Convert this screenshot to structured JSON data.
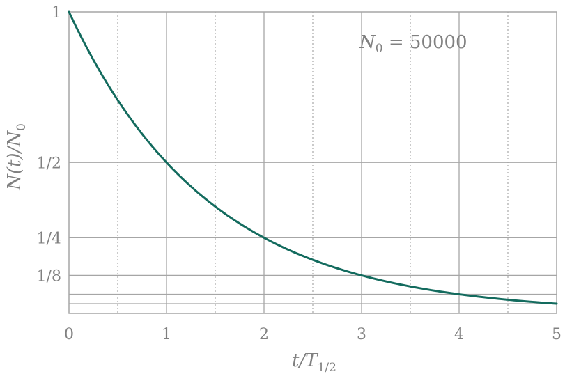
{
  "chart_data": {
    "type": "line",
    "title": "",
    "x_label": {
      "base": "t/T",
      "subscript": "1/2"
    },
    "y_label": {
      "prefix": "N(t)/N",
      "subscript": "0"
    },
    "annotation": {
      "prefix": "N",
      "subscript": "0",
      "suffix": " = 50000"
    },
    "xlim": [
      0,
      5
    ],
    "ylim": [
      0.03125,
      1
    ],
    "x_ticks": [
      {
        "value": 0,
        "label": "0"
      },
      {
        "value": 1,
        "label": "1"
      },
      {
        "value": 2,
        "label": "2"
      },
      {
        "value": 3,
        "label": "3"
      },
      {
        "value": 4,
        "label": "4"
      },
      {
        "value": 5,
        "label": "5"
      }
    ],
    "x_minor_ticks": [
      0.5,
      1.5,
      2.5,
      3.5,
      4.5
    ],
    "y_ticks": [
      {
        "value": 1,
        "label": "1"
      },
      {
        "value": 0.5,
        "label": "1/2"
      },
      {
        "value": 0.25,
        "label": "1/4"
      },
      {
        "value": 0.125,
        "label": "1/8"
      }
    ],
    "y_grid_unlabeled": [
      0.0625,
      0.03125
    ],
    "grid": true,
    "colors": {
      "line": "#136b5e",
      "grid": "#a6a6a6",
      "text": "#808080"
    },
    "series": [
      {
        "x": [
          0,
          0.25,
          0.5,
          0.75,
          1,
          1.25,
          1.5,
          1.75,
          2,
          2.25,
          2.5,
          2.75,
          3,
          3.25,
          3.5,
          3.75,
          4,
          4.25,
          4.5,
          4.75,
          5
        ],
        "y": [
          1,
          0.8409,
          0.7071,
          0.5946,
          0.5,
          0.4204,
          0.3536,
          0.2973,
          0.25,
          0.2102,
          0.1768,
          0.1487,
          0.125,
          0.1051,
          0.0884,
          0.0743,
          0.0625,
          0.0526,
          0.0442,
          0.0372,
          0.03125
        ]
      }
    ]
  }
}
